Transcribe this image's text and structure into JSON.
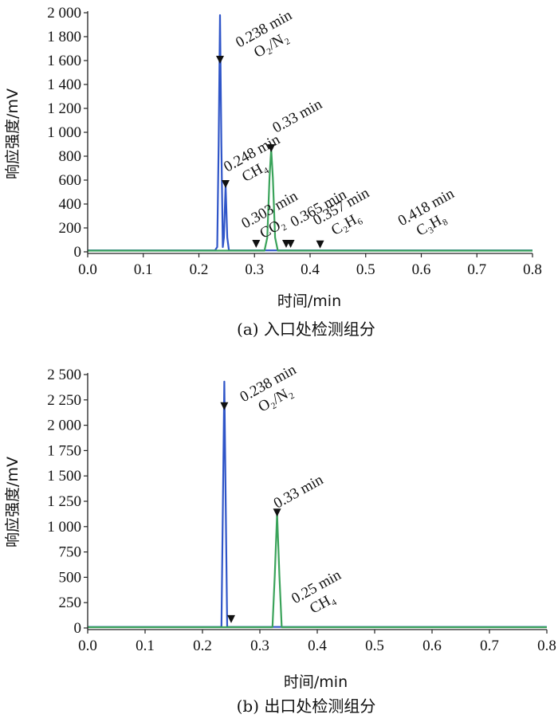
{
  "chart_data": [
    {
      "type": "line",
      "caption": "(a) 入口处检测组分",
      "xlabel": "时间/min",
      "ylabel": "响应强度/mV",
      "xlim": [
        0,
        0.8
      ],
      "ylim": [
        0,
        2000
      ],
      "x_ticks": [
        0.0,
        0.1,
        0.2,
        0.3,
        0.4,
        0.5,
        0.6,
        0.7,
        0.8
      ],
      "x_tick_labels": [
        "0.0",
        "0.1",
        "0.2",
        "0.3",
        "0.4",
        "0.5",
        "0.6",
        "0.7",
        "0.8"
      ],
      "y_ticks": [
        0,
        200,
        400,
        600,
        800,
        1000,
        1200,
        1400,
        1600,
        1800,
        2000
      ],
      "y_tick_labels": [
        "0",
        "200",
        "400",
        "600",
        "800",
        "1 000",
        "1 200",
        "1 400",
        "1 600",
        "1 800",
        "2 000"
      ],
      "series": [
        {
          "color": "#2f55c8",
          "x": [
            0,
            0.229,
            0.233,
            0.2355,
            0.238,
            0.2405,
            0.243,
            0.245,
            0.248,
            0.251,
            0.254,
            0.258,
            0.8
          ],
          "y": [
            12,
            12,
            40,
            900,
            1980,
            900,
            40,
            120,
            560,
            120,
            12,
            12,
            12
          ]
        },
        {
          "color": "#3aa35a",
          "x": [
            0,
            0.318,
            0.323,
            0.327,
            0.33,
            0.333,
            0.337,
            0.342,
            0.8
          ],
          "y": [
            10,
            10,
            120,
            620,
            860,
            620,
            120,
            10,
            10
          ]
        }
      ],
      "markers": [
        {
          "x": 0.238,
          "y": 1600,
          "label": "0.238 min",
          "component": "O₂/N₂"
        },
        {
          "x": 0.248,
          "y": 560,
          "label": "0.248 min",
          "component": "CH₄"
        },
        {
          "x": 0.33,
          "y": 860,
          "label": "0.33 min",
          "component": ""
        },
        {
          "x": 0.303,
          "y": 60,
          "label": "0.303 min",
          "component": "CO₂"
        },
        {
          "x": 0.365,
          "y": 60,
          "label": "0.365 min",
          "component": ""
        },
        {
          "x": 0.357,
          "y": 60,
          "label": "0.357 min",
          "component": "C₂H₆"
        },
        {
          "x": 0.418,
          "y": 55,
          "label": "0.418 min",
          "component": "C₃H₈"
        }
      ]
    },
    {
      "type": "line",
      "caption": "(b) 出口处检测组分",
      "xlabel": "时间/min",
      "ylabel": "响应强度/mV",
      "xlim": [
        0,
        0.8
      ],
      "ylim": [
        0,
        2500
      ],
      "x_ticks": [
        0.0,
        0.1,
        0.2,
        0.3,
        0.4,
        0.5,
        0.6,
        0.7,
        0.8
      ],
      "x_tick_labels": [
        "0.0",
        "0.1",
        "0.2",
        "0.3",
        "0.4",
        "0.5",
        "0.6",
        "0.7",
        "0.8"
      ],
      "y_ticks": [
        0,
        250,
        500,
        750,
        1000,
        1250,
        1500,
        1750,
        2000,
        2250,
        2500
      ],
      "y_tick_labels": [
        "0",
        "250",
        "500",
        "750",
        "1 000",
        "1 250",
        "1 500",
        "1 750",
        "2 000",
        "2 250",
        "2 500"
      ],
      "series": [
        {
          "color": "#2f55c8",
          "x": [
            0,
            0.233,
            0.2355,
            0.238,
            0.2405,
            0.243,
            0.8
          ],
          "y": [
            10,
            10,
            1200,
            2430,
            1200,
            10,
            10
          ]
        },
        {
          "color": "#3aa35a",
          "x": [
            0,
            0.322,
            0.326,
            0.33,
            0.334,
            0.338,
            0.8
          ],
          "y": [
            8,
            8,
            520,
            1130,
            520,
            8,
            8
          ]
        }
      ],
      "markers": [
        {
          "x": 0.238,
          "y": 2180,
          "label": "0.238 min",
          "component": "O₂/N₂"
        },
        {
          "x": 0.33,
          "y": 1130,
          "label": "0.33 min",
          "component": ""
        },
        {
          "x": 0.25,
          "y": 80,
          "label": "0.25 min",
          "component": "CH₄"
        }
      ]
    }
  ]
}
